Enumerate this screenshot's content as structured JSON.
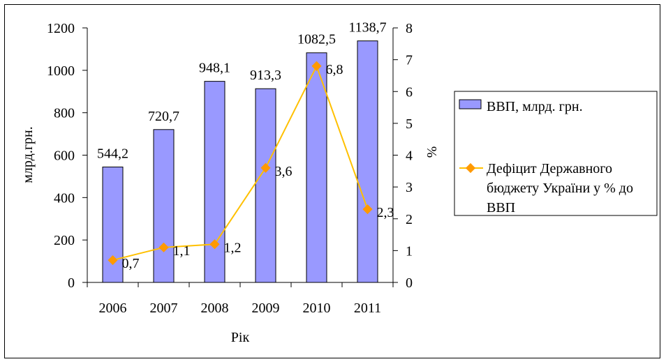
{
  "chart_data": {
    "type": "bar+line",
    "categories": [
      "2006",
      "2007",
      "2008",
      "2009",
      "2010",
      "2011"
    ],
    "xlabel": "Рік",
    "ylabel_left": "млрд.грн.",
    "ylabel_right": "%",
    "ylim_left": [
      0,
      1200
    ],
    "ylim_right": [
      0,
      8
    ],
    "yticks_left": [
      0,
      200,
      400,
      600,
      800,
      1000,
      1200
    ],
    "yticks_right": [
      0,
      1,
      2,
      3,
      4,
      5,
      6,
      7,
      8
    ],
    "series": [
      {
        "name": "ВВП, млрд. грн.",
        "type": "bar",
        "axis": "left",
        "color": "#9999FF",
        "values": [
          544.2,
          720.7,
          948.1,
          913.3,
          1082.5,
          1138.7
        ],
        "labels": [
          "544,2",
          "720,7",
          "948,1",
          "913,3",
          "1082,5",
          "1138,7"
        ]
      },
      {
        "name": "Дефіцит Державного бюджету України у % до ВВП",
        "type": "line",
        "axis": "right",
        "color": "#FFC000",
        "marker_color": "#FF9900",
        "values": [
          0.7,
          1.1,
          1.2,
          3.6,
          6.8,
          2.3
        ],
        "labels": [
          "0,7",
          "1,1",
          "1,2",
          "3,6",
          "6,8",
          "2,3"
        ]
      }
    ],
    "legend": {
      "position": "right",
      "items": [
        "ВВП, млрд. грн.",
        "Дефіцит Державного",
        "бюджету України у % до",
        "ВВП"
      ]
    },
    "grid": false
  }
}
